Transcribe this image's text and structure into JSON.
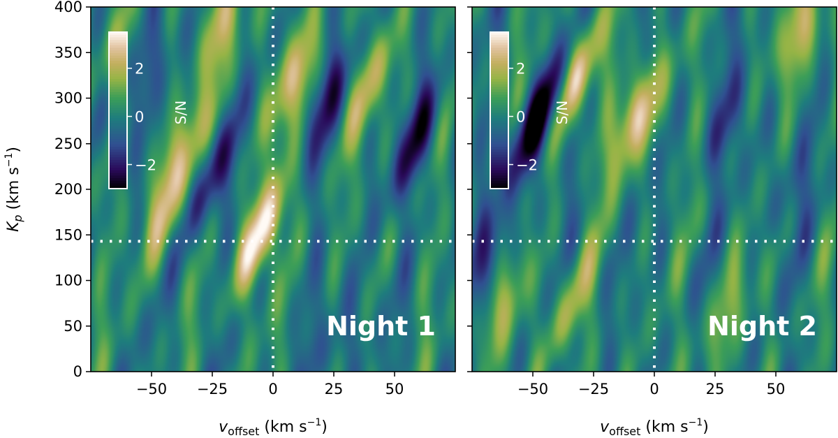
{
  "chart_data": [
    {
      "type": "heatmap",
      "panel_label": "Night 1",
      "xlabel": {
        "base": "v",
        "sub": "offset",
        "unit": " (km s",
        "exp": "−1",
        "close": ")"
      },
      "ylabel": {
        "base": "K",
        "sub": "p",
        "unit": " (km s",
        "exp": "−1",
        "close": ")"
      },
      "xlim": [
        -75,
        75
      ],
      "ylim": [
        0,
        400
      ],
      "xticks": [
        -50,
        -25,
        0,
        25,
        50
      ],
      "xtick_labels": [
        "−50",
        "−25",
        "0",
        "25",
        "50"
      ],
      "yticks": [
        0,
        50,
        100,
        150,
        200,
        250,
        300,
        350,
        400
      ],
      "ytick_labels": [
        "0",
        "50",
        "100",
        "150",
        "200",
        "250",
        "300",
        "350",
        "400"
      ],
      "vline": 0,
      "hline": 143,
      "colormap": "gist_earth",
      "clim": [
        -3,
        3.5
      ],
      "colorbar": {
        "label": "S/N",
        "ticks": [
          2,
          0,
          -2
        ],
        "tick_labels": [
          "2",
          "0",
          "−2"
        ]
      },
      "features": [
        {
          "v": -5,
          "kp": 150,
          "amp": 3.5
        },
        {
          "v": 8,
          "kp": 320,
          "amp": 2.4
        },
        {
          "v": -44,
          "kp": 180,
          "amp": 2.0
        },
        {
          "v": -38,
          "kp": 245,
          "amp": 1.9
        },
        {
          "v": -20,
          "kp": 380,
          "amp": 2.1
        },
        {
          "v": 40,
          "kp": 315,
          "amp": 1.7
        },
        {
          "v": -66,
          "kp": 350,
          "amp": 1.4
        },
        {
          "v": -27,
          "kp": 210,
          "amp": -2.0
        },
        {
          "v": -55,
          "kp": 330,
          "amp": -1.5
        },
        {
          "v": 60,
          "kp": 255,
          "amp": -2.2
        },
        {
          "v": 22,
          "kp": 300,
          "amp": -1.6
        },
        {
          "v": 28,
          "kp": 35,
          "amp": -1.2
        }
      ]
    },
    {
      "type": "heatmap",
      "panel_label": "Night 2",
      "xlabel": {
        "base": "v",
        "sub": "offset",
        "unit": " (km s",
        "exp": "−1",
        "close": ")"
      },
      "xlim": [
        -75,
        75
      ],
      "ylim": [
        0,
        400
      ],
      "xticks": [
        -50,
        -25,
        0,
        25,
        50
      ],
      "xtick_labels": [
        "−50",
        "−25",
        "0",
        "25",
        "50"
      ],
      "vline": 0,
      "hline": 143,
      "colormap": "gist_earth",
      "clim": [
        -3,
        3.5
      ],
      "colorbar": {
        "label": "S/N",
        "ticks": [
          2,
          0,
          -2
        ],
        "tick_labels": [
          "2",
          "0",
          "−2"
        ]
      },
      "features": [
        {
          "v": -33,
          "kp": 320,
          "amp": 3.3
        },
        {
          "v": -8,
          "kp": 280,
          "amp": 3.2
        },
        {
          "v": 62,
          "kp": 375,
          "amp": 2.6
        },
        {
          "v": -60,
          "kp": 75,
          "amp": 1.6
        },
        {
          "v": -35,
          "kp": 70,
          "amp": 1.5
        },
        {
          "v": 28,
          "kp": 60,
          "amp": 1.3
        },
        {
          "v": -50,
          "kp": 265,
          "amp": -2.4
        },
        {
          "v": -42,
          "kp": 300,
          "amp": -1.8
        },
        {
          "v": -65,
          "kp": 130,
          "amp": -1.5
        },
        {
          "v": 32,
          "kp": 280,
          "amp": -1.4
        },
        {
          "v": 55,
          "kp": 200,
          "amp": -0.9
        }
      ]
    }
  ]
}
